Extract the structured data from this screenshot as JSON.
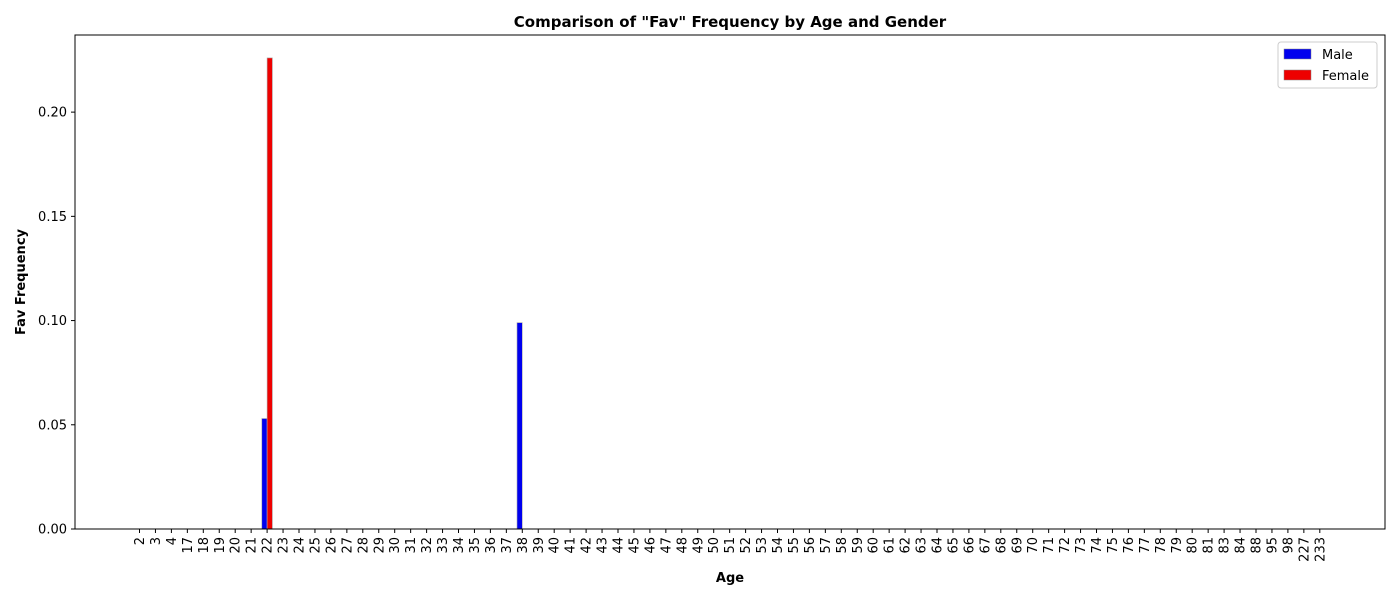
{
  "chart_data": {
    "type": "bar",
    "title": "Comparison of \"Fav\" Frequency by Age and Gender",
    "xlabel": "Age",
    "ylabel": "Fav Frequency",
    "ylim": [
      0,
      0.237
    ],
    "yticks": [
      "0.00",
      "0.05",
      "0.10",
      "0.15",
      "0.20"
    ],
    "ytick_values": [
      0,
      0.05,
      0.1,
      0.15,
      0.2
    ],
    "categories": [
      "2",
      "3",
      "4",
      "17",
      "18",
      "19",
      "20",
      "21",
      "22",
      "23",
      "24",
      "25",
      "26",
      "27",
      "28",
      "29",
      "30",
      "31",
      "32",
      "33",
      "34",
      "35",
      "36",
      "37",
      "38",
      "39",
      "40",
      "41",
      "42",
      "43",
      "44",
      "45",
      "46",
      "47",
      "48",
      "49",
      "50",
      "51",
      "52",
      "53",
      "54",
      "55",
      "56",
      "57",
      "58",
      "59",
      "60",
      "61",
      "62",
      "63",
      "64",
      "65",
      "66",
      "67",
      "68",
      "69",
      "70",
      "71",
      "72",
      "73",
      "74",
      "75",
      "76",
      "77",
      "78",
      "79",
      "80",
      "81",
      "83",
      "84",
      "88",
      "95",
      "98",
      "227",
      "233"
    ],
    "series": [
      {
        "name": "Male",
        "color": "#0000ee",
        "values": [
          0,
          0,
          0,
          0,
          0,
          0,
          0,
          0,
          0.053,
          0,
          0,
          0,
          0,
          0,
          0,
          0,
          0,
          0,
          0,
          0,
          0,
          0,
          0,
          0,
          0.099,
          0,
          0,
          0,
          0,
          0,
          0,
          0,
          0,
          0,
          0,
          0,
          0,
          0,
          0,
          0,
          0,
          0,
          0,
          0,
          0,
          0,
          0,
          0,
          0,
          0,
          0,
          0,
          0,
          0,
          0,
          0,
          0,
          0,
          0,
          0,
          0,
          0,
          0,
          0,
          0,
          0,
          0,
          0,
          0,
          0,
          0,
          0,
          0,
          0,
          0
        ]
      },
      {
        "name": "Female",
        "color": "#ee0000",
        "values": [
          0,
          0,
          0,
          0,
          0,
          0,
          0,
          0,
          0.226,
          0,
          0,
          0,
          0,
          0,
          0,
          0,
          0,
          0,
          0,
          0,
          0,
          0,
          0,
          0,
          0,
          0,
          0,
          0,
          0,
          0,
          0,
          0,
          0,
          0,
          0,
          0,
          0,
          0,
          0,
          0,
          0,
          0,
          0,
          0,
          0,
          0,
          0,
          0,
          0,
          0,
          0,
          0,
          0,
          0,
          0,
          0,
          0,
          0,
          0,
          0,
          0,
          0,
          0,
          0,
          0,
          0,
          0,
          0,
          0,
          0,
          0,
          0,
          0,
          0,
          0
        ]
      }
    ],
    "legend": "top-right",
    "grid": false
  }
}
